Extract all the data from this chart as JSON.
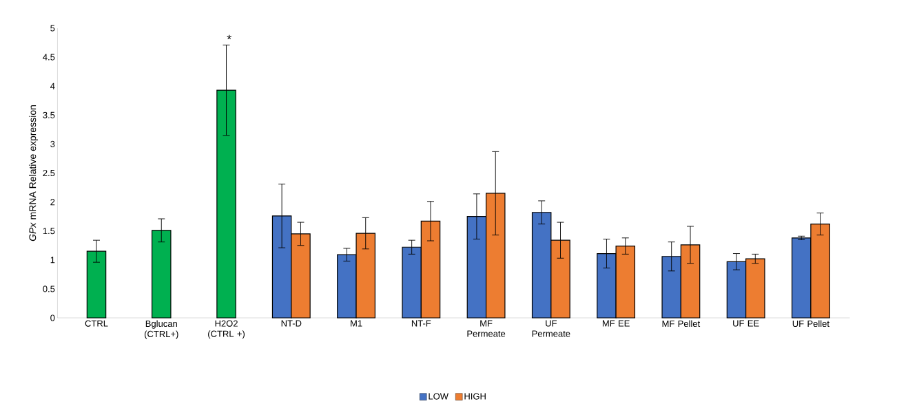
{
  "chart_data": {
    "type": "bar",
    "ylabel": "*GPx* mRNA Relative expression",
    "categories": [
      "CTRL",
      "Bglucan (CTRL+)",
      "H2O2 (CTRL +)",
      "NT-D",
      "M1",
      "NT-F",
      "MF Permeate",
      "UF Permeate",
      "MF EE",
      "MF Pellet",
      "UF EE",
      "UF Pellet"
    ],
    "series": [
      {
        "color": "#00b050",
        "values": [
          1.15,
          1.51,
          3.93,
          null,
          null,
          null,
          null,
          null,
          null,
          null,
          null,
          null
        ],
        "errors": [
          0.19,
          0.2,
          0.78,
          null,
          null,
          null,
          null,
          null,
          null,
          null,
          null,
          null
        ]
      },
      {
        "name": "LOW",
        "color": "#4472c4",
        "values": [
          null,
          null,
          null,
          1.76,
          1.09,
          1.22,
          1.75,
          1.82,
          1.11,
          1.06,
          0.97,
          1.38
        ],
        "errors": [
          null,
          null,
          null,
          0.55,
          0.11,
          0.12,
          0.39,
          0.2,
          0.25,
          0.25,
          0.14,
          0.03
        ]
      },
      {
        "name": "HIGH",
        "color": "#ed7d31",
        "values": [
          null,
          null,
          null,
          1.45,
          1.46,
          1.67,
          2.15,
          1.34,
          1.24,
          1.26,
          1.02,
          1.62
        ],
        "errors": [
          null,
          null,
          null,
          0.2,
          0.27,
          0.34,
          0.72,
          0.31,
          0.14,
          0.32,
          0.08,
          0.19
        ]
      }
    ],
    "ylim": [
      0,
      5
    ],
    "yticks": [
      0,
      0.5,
      1,
      1.5,
      2,
      2.5,
      3,
      3.5,
      4,
      4.5,
      5
    ],
    "annotations": [
      "*"
    ],
    "legend": "bottom",
    "grid": false
  }
}
